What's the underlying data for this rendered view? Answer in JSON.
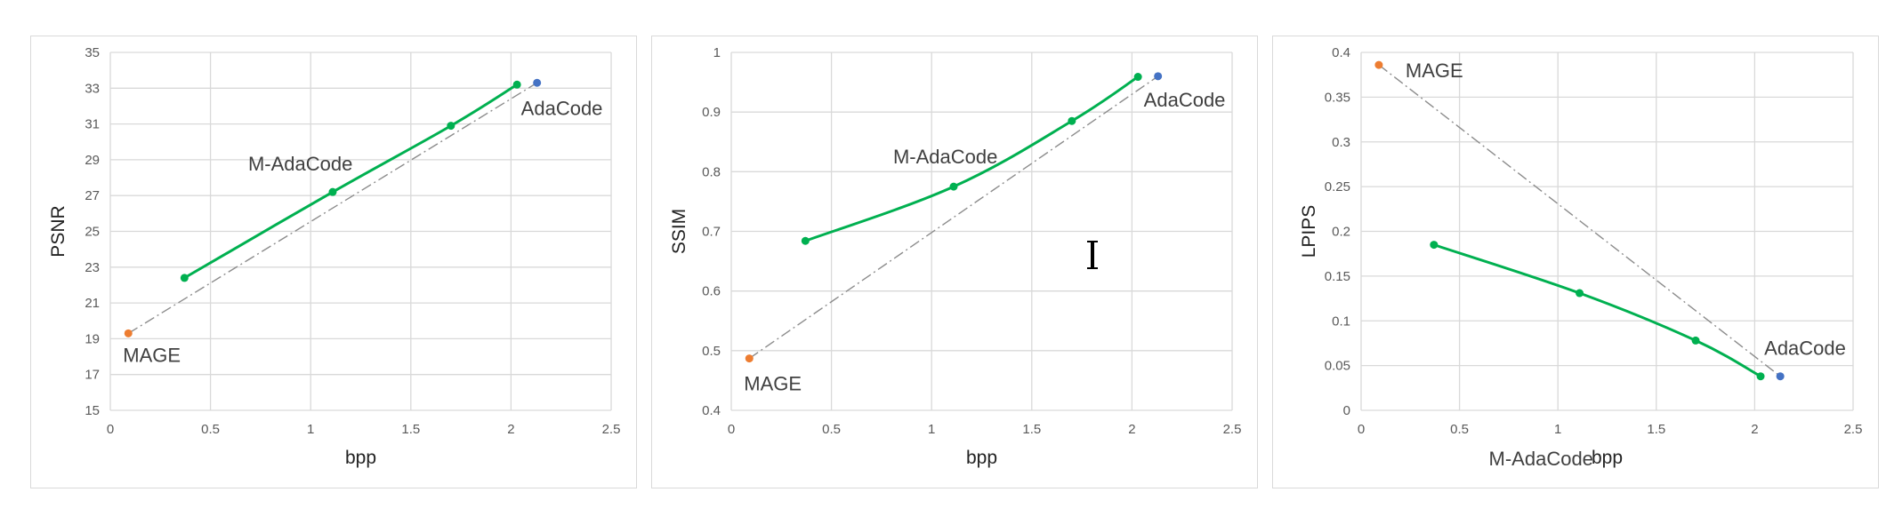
{
  "chart_data": [
    {
      "type": "line",
      "xlabel": "bpp",
      "ylabel": "PSNR",
      "xlim": [
        0,
        2.5
      ],
      "ylim": [
        15,
        35
      ],
      "xticks": [
        0,
        0.5,
        1,
        1.5,
        2,
        2.5
      ],
      "xtick_labels": [
        "0",
        "0.5",
        "1",
        "1.5",
        "2",
        "2.5"
      ],
      "yticks": [
        15,
        17,
        19,
        21,
        23,
        25,
        27,
        29,
        31,
        33,
        35
      ],
      "ytick_labels": [
        "15",
        "17",
        "19",
        "21",
        "23",
        "25",
        "27",
        "29",
        "31",
        "33",
        "35"
      ],
      "grid": true,
      "series": [
        {
          "name": "M-AdaCode",
          "color": "#00b050",
          "style": "solid",
          "x": [
            0.37,
            1.11,
            1.7,
            2.03
          ],
          "y": [
            22.4,
            27.2,
            30.9,
            33.2
          ]
        },
        {
          "name": "MAGE",
          "color": "#ed7d31",
          "style": "point",
          "x": [
            0.09
          ],
          "y": [
            19.3
          ]
        },
        {
          "name": "AdaCode",
          "color": "#4472c4",
          "style": "point",
          "x": [
            2.13
          ],
          "y": [
            33.3
          ]
        }
      ],
      "reference_line": {
        "from": [
          0.09,
          19.3
        ],
        "to": [
          2.13,
          33.3
        ],
        "color": "#8c8c8c",
        "style": "dash-dot"
      },
      "labels": {
        "m_adacode": "M-AdaCode",
        "mage": "MAGE",
        "adacode": "AdaCode"
      }
    },
    {
      "type": "line",
      "xlabel": "bpp",
      "ylabel": "SSIM",
      "xlim": [
        0,
        2.5
      ],
      "ylim": [
        0.4,
        1.0
      ],
      "xticks": [
        0,
        0.5,
        1,
        1.5,
        2,
        2.5
      ],
      "xtick_labels": [
        "0",
        "0.5",
        "1",
        "1.5",
        "2",
        "2.5"
      ],
      "yticks": [
        0.4,
        0.5,
        0.6,
        0.7,
        0.8,
        0.9,
        1.0
      ],
      "ytick_labels": [
        "0.4",
        "0.5",
        "0.6",
        "0.7",
        "0.8",
        "0.9",
        "1"
      ],
      "grid": true,
      "series": [
        {
          "name": "M-AdaCode",
          "color": "#00b050",
          "style": "solid",
          "x": [
            0.37,
            1.11,
            1.7,
            2.03
          ],
          "y": [
            0.684,
            0.775,
            0.885,
            0.959
          ]
        },
        {
          "name": "MAGE",
          "color": "#ed7d31",
          "style": "point",
          "x": [
            0.09
          ],
          "y": [
            0.487
          ]
        },
        {
          "name": "AdaCode",
          "color": "#4472c4",
          "style": "point",
          "x": [
            2.13
          ],
          "y": [
            0.96
          ]
        }
      ],
      "reference_line": {
        "from": [
          0.09,
          0.487
        ],
        "to": [
          2.13,
          0.96
        ],
        "color": "#8c8c8c",
        "style": "dash-dot"
      },
      "labels": {
        "m_adacode": "M-AdaCode",
        "mage": "MAGE",
        "adacode": "AdaCode"
      }
    },
    {
      "type": "line",
      "xlabel": "bpp",
      "ylabel": "LPIPS",
      "xlim": [
        0,
        2.5
      ],
      "ylim": [
        0,
        0.4
      ],
      "xticks": [
        0,
        0.5,
        1,
        1.5,
        2,
        2.5
      ],
      "xtick_labels": [
        "0",
        "0.5",
        "1",
        "1.5",
        "2",
        "2.5"
      ],
      "yticks": [
        0,
        0.05,
        0.1,
        0.15,
        0.2,
        0.25,
        0.3,
        0.35,
        0.4
      ],
      "ytick_labels": [
        "0",
        "0.05",
        "0.1",
        "0.15",
        "0.2",
        "0.25",
        "0.3",
        "0.35",
        "0.4"
      ],
      "grid": true,
      "series": [
        {
          "name": "M-AdaCode",
          "color": "#00b050",
          "style": "solid",
          "x": [
            0.37,
            1.11,
            1.7,
            2.03
          ],
          "y": [
            0.185,
            0.131,
            0.078,
            0.038
          ]
        },
        {
          "name": "MAGE",
          "color": "#ed7d31",
          "style": "point",
          "x": [
            0.09
          ],
          "y": [
            0.386
          ]
        },
        {
          "name": "AdaCode",
          "color": "#4472c4",
          "style": "point",
          "x": [
            2.13
          ],
          "y": [
            0.038
          ]
        }
      ],
      "reference_line": {
        "from": [
          0.09,
          0.386
        ],
        "to": [
          2.13,
          0.038
        ],
        "color": "#8c8c8c",
        "style": "dash-dot"
      },
      "labels": {
        "m_adacode": "M-AdaCode",
        "mage": "MAGE",
        "adacode": "AdaCode"
      }
    }
  ],
  "cursor_icon": "text-cursor-icon"
}
